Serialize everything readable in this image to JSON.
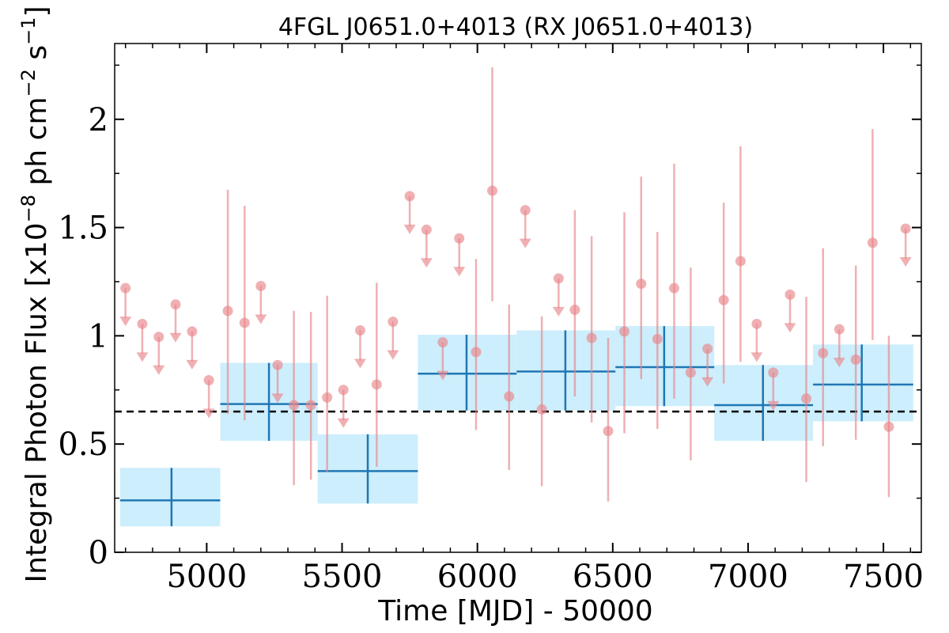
{
  "chart_data": {
    "type": "scatter",
    "title": "4FGL J0651.0+4013 (RX J0651.0+4013)",
    "xlabel": "Time [MJD] - 50000",
    "ylabel": "Integral Photon Flux [x10$^{-8}$ ph cm$^{-2}$ s$^{-1}$]",
    "ylabel_parts": {
      "base": "Integral Photon Flux [x10",
      "exp1": "−8",
      "mid": " ph cm",
      "exp2": "−2",
      "mid2": " s",
      "exp3": "−1",
      "end": "]"
    },
    "xlim": [
      4660,
      7640
    ],
    "ylim": [
      0,
      2.35
    ],
    "xticks": [
      5000,
      5500,
      6000,
      6500,
      7000,
      7500
    ],
    "xtick_labels": [
      "5000",
      "5500",
      "6000",
      "6500",
      "7000",
      "7500"
    ],
    "yticks": [
      0,
      0.5,
      1,
      1.5,
      2
    ],
    "ytick_labels": [
      "0",
      "0.5",
      "1",
      "1.5",
      "2"
    ],
    "reference_line": {
      "y": 0.65,
      "style": "dashed",
      "color": "#000000"
    },
    "colors": {
      "short_bins": "#e8858a",
      "long_bins_line": "#1f77b4",
      "long_bins_box": "#cdeefc"
    },
    "long_bins": [
      {
        "x": 4870,
        "x_lo": 4680,
        "x_hi": 5050,
        "y": 0.24,
        "y_lo": 0.12,
        "y_hi": 0.39
      },
      {
        "x": 5230,
        "x_lo": 5050,
        "x_hi": 5410,
        "y": 0.685,
        "y_lo": 0.515,
        "y_hi": 0.875
      },
      {
        "x": 5595,
        "x_lo": 5410,
        "x_hi": 5780,
        "y": 0.375,
        "y_lo": 0.225,
        "y_hi": 0.545
      },
      {
        "x": 5960,
        "x_lo": 5780,
        "x_hi": 6145,
        "y": 0.825,
        "y_lo": 0.655,
        "y_hi": 1.005
      },
      {
        "x": 6325,
        "x_lo": 6145,
        "x_hi": 6510,
        "y": 0.835,
        "y_lo": 0.655,
        "y_hi": 1.025
      },
      {
        "x": 6690,
        "x_lo": 6510,
        "x_hi": 6875,
        "y": 0.855,
        "y_lo": 0.675,
        "y_hi": 1.045
      },
      {
        "x": 7055,
        "x_lo": 6875,
        "x_hi": 7240,
        "y": 0.68,
        "y_lo": 0.515,
        "y_hi": 0.865
      },
      {
        "x": 7420,
        "x_lo": 7240,
        "x_hi": 7610,
        "y": 0.775,
        "y_lo": 0.605,
        "y_hi": 0.96
      }
    ],
    "short_bins": [
      {
        "x": 4700,
        "y": 1.22,
        "upper_limit": true
      },
      {
        "x": 4762,
        "y": 1.055,
        "upper_limit": true
      },
      {
        "x": 4823,
        "y": 0.995,
        "upper_limit": true
      },
      {
        "x": 4885,
        "y": 1.145,
        "upper_limit": true
      },
      {
        "x": 4946,
        "y": 1.02,
        "upper_limit": true
      },
      {
        "x": 5008,
        "y": 0.795,
        "upper_limit": true
      },
      {
        "x": 5078,
        "y": 1.115,
        "y_lo": 0.64,
        "y_hi": 1.675
      },
      {
        "x": 5140,
        "y": 1.06,
        "y_lo": 0.61,
        "y_hi": 1.6
      },
      {
        "x": 5200,
        "y": 1.23,
        "upper_limit": true
      },
      {
        "x": 5262,
        "y": 0.865,
        "upper_limit": true
      },
      {
        "x": 5322,
        "y": 0.68,
        "y_lo": 0.31,
        "y_hi": 1.115
      },
      {
        "x": 5385,
        "y": 0.68,
        "y_lo": 0.335,
        "y_hi": 1.11
      },
      {
        "x": 5445,
        "y": 0.715,
        "y_lo": 0.37,
        "y_hi": 1.185
      },
      {
        "x": 5505,
        "y": 0.75,
        "upper_limit": true
      },
      {
        "x": 5567,
        "y": 1.025,
        "upper_limit": true
      },
      {
        "x": 5628,
        "y": 0.775,
        "y_lo": 0.395,
        "y_hi": 1.245
      },
      {
        "x": 5688,
        "y": 1.065,
        "upper_limit": true
      },
      {
        "x": 5750,
        "y": 1.645,
        "upper_limit": true
      },
      {
        "x": 5812,
        "y": 1.49,
        "upper_limit": true
      },
      {
        "x": 5872,
        "y": 0.97,
        "upper_limit": true
      },
      {
        "x": 5933,
        "y": 1.45,
        "upper_limit": true
      },
      {
        "x": 5995,
        "y": 0.925,
        "y_lo": 0.565,
        "y_hi": 1.355
      },
      {
        "x": 6055,
        "y": 1.67,
        "y_lo": 1.16,
        "y_hi": 2.24
      },
      {
        "x": 6117,
        "y": 0.72,
        "y_lo": 0.38,
        "y_hi": 1.145
      },
      {
        "x": 6177,
        "y": 1.58,
        "upper_limit": true
      },
      {
        "x": 6238,
        "y": 0.66,
        "y_lo": 0.305,
        "y_hi": 1.09
      },
      {
        "x": 6300,
        "y": 1.265,
        "upper_limit": true
      },
      {
        "x": 6360,
        "y": 1.12,
        "y_lo": 0.72,
        "y_hi": 1.58
      },
      {
        "x": 6422,
        "y": 0.99,
        "y_lo": 0.6,
        "y_hi": 1.46
      },
      {
        "x": 6483,
        "y": 0.56,
        "y_lo": 0.235,
        "y_hi": 0.99
      },
      {
        "x": 6543,
        "y": 1.02,
        "y_lo": 0.55,
        "y_hi": 1.57
      },
      {
        "x": 6605,
        "y": 1.24,
        "y_lo": 0.8,
        "y_hi": 1.735
      },
      {
        "x": 6665,
        "y": 0.985,
        "y_lo": 0.57,
        "y_hi": 1.48
      },
      {
        "x": 6727,
        "y": 1.22,
        "y_lo": 0.71,
        "y_hi": 1.795
      },
      {
        "x": 6788,
        "y": 0.83,
        "y_lo": 0.425,
        "y_hi": 1.315
      },
      {
        "x": 6850,
        "y": 0.94,
        "upper_limit": true
      },
      {
        "x": 6910,
        "y": 1.165,
        "y_lo": 0.78,
        "y_hi": 1.615
      },
      {
        "x": 6972,
        "y": 1.345,
        "y_lo": 0.88,
        "y_hi": 1.875
      },
      {
        "x": 7032,
        "y": 1.055,
        "upper_limit": true
      },
      {
        "x": 7093,
        "y": 0.83,
        "upper_limit": true
      },
      {
        "x": 7155,
        "y": 1.19,
        "upper_limit": true
      },
      {
        "x": 7215,
        "y": 0.71,
        "y_lo": 0.325,
        "y_hi": 1.18
      },
      {
        "x": 7277,
        "y": 0.92,
        "y_lo": 0.49,
        "y_hi": 1.405
      },
      {
        "x": 7337,
        "y": 1.03,
        "upper_limit": true
      },
      {
        "x": 7398,
        "y": 0.89,
        "y_lo": 0.52,
        "y_hi": 1.325
      },
      {
        "x": 7460,
        "y": 1.43,
        "y_lo": 0.98,
        "y_hi": 1.955
      },
      {
        "x": 7520,
        "y": 0.58,
        "y_lo": 0.255,
        "y_hi": 1.0
      },
      {
        "x": 7582,
        "y": 1.495,
        "upper_limit": true
      }
    ]
  }
}
